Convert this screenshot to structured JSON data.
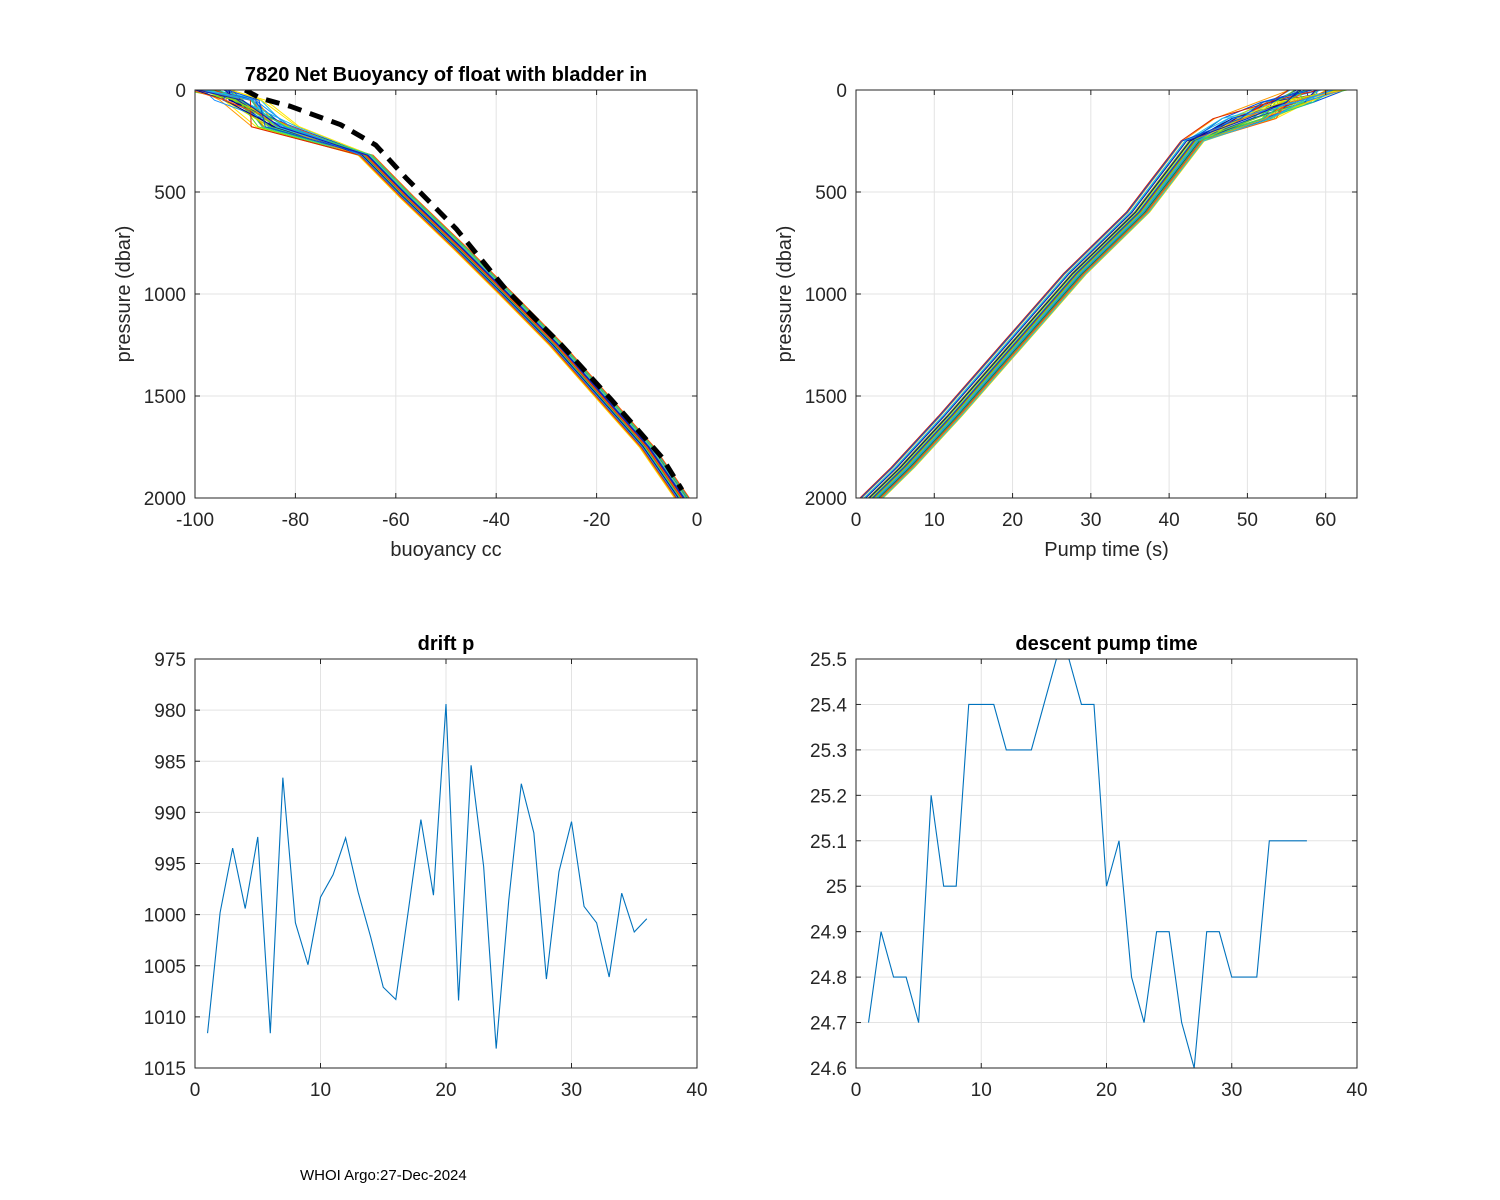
{
  "footer": "WHOI Argo:27-Dec-2024",
  "chart_data": [
    {
      "id": "buoyancy",
      "type": "line",
      "title": "7820 Net Buoyancy of float with bladder in",
      "xlabel": "buoyancy cc",
      "ylabel": "pressure (dbar)",
      "xlim": [
        -100,
        0
      ],
      "ylim": [
        0,
        2000
      ],
      "y_reversed": true,
      "xticks": [
        "-100",
        "-80",
        "-60",
        "-40",
        "-20",
        "0"
      ],
      "yticks": [
        "0",
        "500",
        "1000",
        "1500",
        "2000"
      ],
      "x_tick_values": [
        -100,
        -80,
        -60,
        -40,
        -20,
        0
      ],
      "y_tick_values": [
        0,
        500,
        1000,
        1500,
        2000
      ],
      "colors": [
        "#ffe600",
        "#c8e000",
        "#66dd22",
        "#22cc88",
        "#20c0e0",
        "#1890ff",
        "#0050e0",
        "#1818b0",
        "#000080",
        "#ff9a00",
        "#ff5a00",
        "#dd2200"
      ],
      "series": [
        {
          "name": "profiles (colored by cycle)",
          "x": [
            -97,
            -91,
            -84,
            -66,
            -58,
            -47,
            -38,
            -28,
            -19,
            -10,
            -3
          ],
          "y": [
            0,
            50,
            180,
            320,
            520,
            780,
            1000,
            1250,
            1500,
            1750,
            2000
          ]
        },
        {
          "name": "mean (dashed black)",
          "x": [
            -90,
            -87,
            -81,
            -71,
            -64,
            -58,
            -48,
            -38,
            -27,
            -17,
            -7,
            -3
          ],
          "y": [
            0,
            40,
            80,
            170,
            270,
            430,
            680,
            980,
            1250,
            1520,
            1800,
            1960
          ]
        }
      ]
    },
    {
      "id": "pumptime",
      "type": "line",
      "title": "",
      "xlabel": "Pump time (s)",
      "ylabel": "pressure (dbar)",
      "xlim": [
        0,
        64
      ],
      "ylim": [
        0,
        2000
      ],
      "y_reversed": true,
      "xticks": [
        "0",
        "10",
        "20",
        "30",
        "40",
        "50",
        "60"
      ],
      "yticks": [
        "0",
        "500",
        "1000",
        "1500",
        "2000"
      ],
      "x_tick_values": [
        0,
        10,
        20,
        30,
        40,
        50,
        60
      ],
      "y_tick_values": [
        0,
        500,
        1000,
        1500,
        2000
      ],
      "series": [
        {
          "name": "profiles (colored by cycle)",
          "x": [
            59,
            55,
            50,
            43,
            41,
            36,
            28,
            20,
            12,
            6,
            2
          ],
          "y": [
            0,
            60,
            140,
            250,
            350,
            600,
            900,
            1250,
            1600,
            1850,
            2000
          ]
        }
      ]
    },
    {
      "id": "driftp",
      "type": "line",
      "title": "drift p",
      "xlabel": "",
      "ylabel": "",
      "xlim": [
        0,
        40
      ],
      "ylim": [
        975,
        1015
      ],
      "y_reversed": true,
      "xticks": [
        "0",
        "10",
        "20",
        "30",
        "40"
      ],
      "yticks": [
        "975",
        "980",
        "985",
        "990",
        "995",
        "1000",
        "1005",
        "1010",
        "1015"
      ],
      "x_tick_values": [
        0,
        10,
        20,
        30,
        40
      ],
      "y_tick_values": [
        975,
        980,
        985,
        990,
        995,
        1000,
        1005,
        1010,
        1015
      ],
      "series": [
        {
          "name": "drift p",
          "x": [
            1,
            2,
            3,
            4,
            5,
            6,
            7,
            8,
            9,
            10,
            11,
            12,
            13,
            14,
            15,
            16,
            17,
            18,
            19,
            20,
            21,
            22,
            23,
            24,
            25,
            26,
            27,
            28,
            29,
            30,
            31,
            32,
            33,
            34,
            35,
            36
          ],
          "values": [
            1011.6,
            999.8,
            993.5,
            999.4,
            992.4,
            1011.6,
            986.6,
            1000.8,
            1004.9,
            998.3,
            996.1,
            992.5,
            997.8,
            1002.2,
            1007.1,
            1008.3,
            999.6,
            990.7,
            998.1,
            979.4,
            1008.4,
            985.4,
            995.3,
            1013.1,
            998.6,
            987.2,
            992.0,
            1006.3,
            995.8,
            990.9,
            999.2,
            1000.8,
            1006.1,
            997.9,
            1001.7,
            1000.4
          ]
        }
      ]
    },
    {
      "id": "descentpump",
      "type": "line",
      "title": "descent pump time",
      "xlabel": "",
      "ylabel": "",
      "xlim": [
        0,
        40
      ],
      "ylim": [
        24.6,
        25.5
      ],
      "y_reversed": false,
      "xticks": [
        "0",
        "10",
        "20",
        "30",
        "40"
      ],
      "yticks": [
        "24.6",
        "24.7",
        "24.8",
        "24.9",
        "25",
        "25.1",
        "25.2",
        "25.3",
        "25.4",
        "25.5"
      ],
      "x_tick_values": [
        0,
        10,
        20,
        30,
        40
      ],
      "y_tick_values": [
        24.6,
        24.7,
        24.8,
        24.9,
        25.0,
        25.1,
        25.2,
        25.3,
        25.4,
        25.5
      ],
      "series": [
        {
          "name": "descent pump time",
          "x": [
            1,
            2,
            3,
            4,
            5,
            6,
            7,
            8,
            9,
            10,
            11,
            12,
            13,
            14,
            15,
            16,
            17,
            18,
            19,
            20,
            21,
            22,
            23,
            24,
            25,
            26,
            27,
            28,
            29,
            30,
            31,
            32,
            33,
            34,
            35,
            36
          ],
          "values": [
            24.7,
            24.9,
            24.8,
            24.8,
            24.7,
            25.2,
            25.0,
            25.0,
            25.4,
            25.4,
            25.4,
            25.3,
            25.3,
            25.3,
            25.4,
            25.5,
            25.5,
            25.4,
            25.4,
            25.0,
            25.1,
            24.8,
            24.7,
            24.9,
            24.9,
            24.7,
            24.6,
            24.9,
            24.9,
            24.8,
            24.8,
            24.8,
            25.1,
            25.1,
            25.1,
            25.1
          ]
        }
      ]
    }
  ]
}
